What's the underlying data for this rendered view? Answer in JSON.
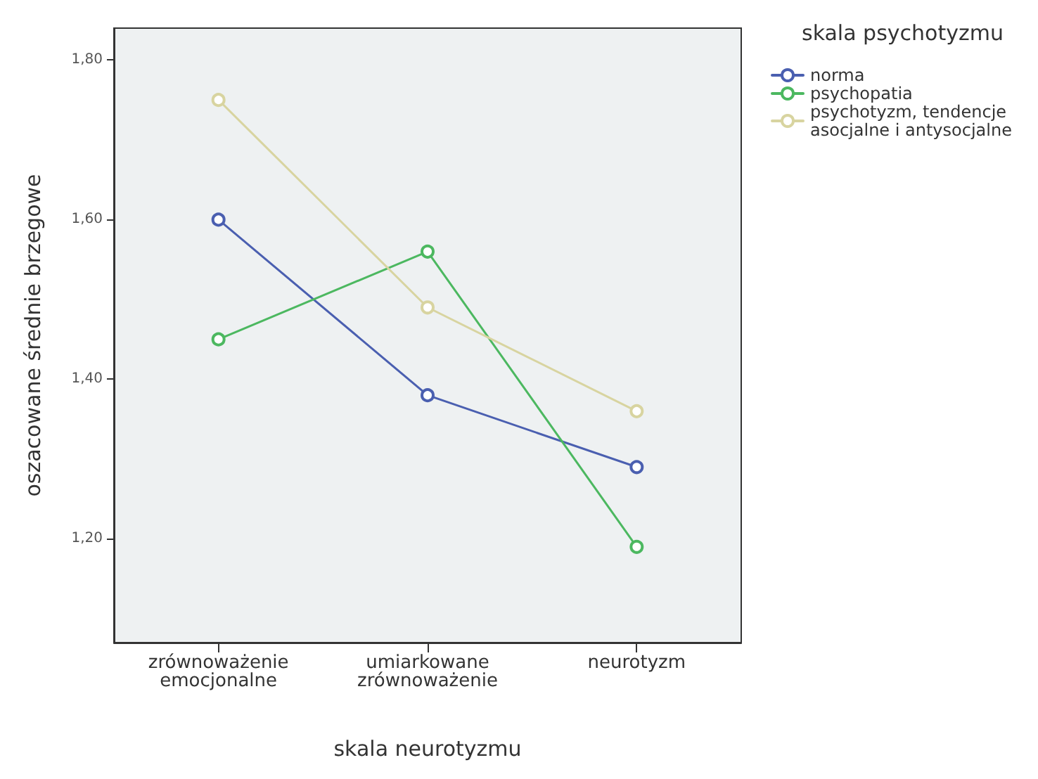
{
  "chart_data": {
    "type": "line",
    "xlabel": "skala neurotyzmu",
    "ylabel": "oszacowane średnie brzegowe",
    "legend_title": "skala psychotyzmu",
    "categories": [
      "zrównoważenie\nemocjonalne",
      "umiarkowane\nzrównoważenie",
      "neurotyzm"
    ],
    "series": [
      {
        "name": "norma",
        "color": "#4a5fb0",
        "values": [
          1.6,
          1.38,
          1.29
        ]
      },
      {
        "name": "psychopatia",
        "color": "#4cb860",
        "values": [
          1.45,
          1.56,
          1.19
        ]
      },
      {
        "name": "psychotyzm, tendencje asocjalne i antysocjalne",
        "color": "#d8d4a0",
        "values": [
          1.75,
          1.49,
          1.36
        ]
      }
    ],
    "ylim": [
      1.07,
      1.84
    ],
    "yticks": [
      {
        "value": 1.2,
        "label": "1,20"
      },
      {
        "value": 1.4,
        "label": "1,40"
      },
      {
        "value": 1.6,
        "label": "1,60"
      },
      {
        "value": 1.8,
        "label": "1,80"
      }
    ],
    "grid": false,
    "legend": "top right",
    "marker": "circle",
    "line_style": "solid"
  }
}
